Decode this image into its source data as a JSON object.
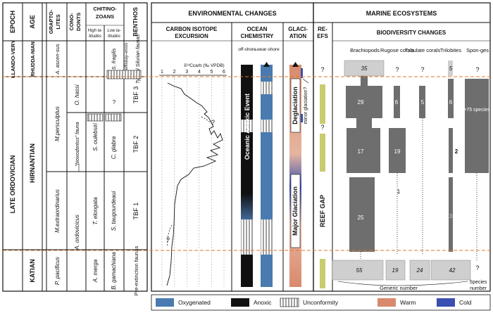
{
  "header": {
    "epoch": "EPOCH",
    "age": "AGE",
    "graptolites": [
      "GRAPTO-",
      "LITES"
    ],
    "conodonts": [
      "CONO-",
      "DONTS"
    ],
    "chitinozoans": [
      "CHITINO-",
      "ZOANS"
    ],
    "high_latitudes": [
      "High la-",
      "titudes"
    ],
    "low_latitudes": [
      "Low la-",
      "titudes"
    ],
    "benthos": "BENTHOS",
    "environmental_changes": "ENVIRONMENTAL CHANGES",
    "marine_ecosystems": "MARINE ECOSYSTEMS",
    "carbon_isotope": [
      "CARBON ISOTOPE",
      "EXCURSION"
    ],
    "ocean_chemistry": [
      "OCEAN",
      "CHEMISTRY"
    ],
    "glaciation": [
      "GLACI-",
      "ATION"
    ],
    "reefs": [
      "RE-",
      "EFS"
    ],
    "biodiversity_changes": "BIODIVERSITY CHANGES"
  },
  "chronostrat": {
    "llandovery": "LLANDO-VERY",
    "late_ordovician": "LATE ORDOVICIAN",
    "rhuddanian": "RHUDDA-NIAN",
    "hirnantian": "HIRNANTIAN",
    "katian": "KATIAN"
  },
  "graptolites": {
    "ascensus": "A. ascen-sus",
    "persculptus": "M.persculptus",
    "extraordinarius": "M.extraordinarius",
    "pacificus": "P. pacificus"
  },
  "conodonts": {
    "hassi": "O. hassi",
    "normalodontus": "\"Noixodontus\" fauna",
    "ordovicicus": "A. ordovicicus"
  },
  "chitino_high": {
    "oulebsiri": "S. oulebsiri",
    "elongata": "T. elongata",
    "merga": "A. merga"
  },
  "chitino_low": {
    "fragilis": "S. fragilis",
    "ellisbay": "A. ellisbay-ensis",
    "q": "?",
    "glabra": "C. glabra",
    "taugourdeaui": "S. taugourdeaui",
    "gamachiana": "B. gamachiana"
  },
  "benthos": {
    "silurian": "Typical Silurian faunas",
    "tbf3": "TBF 3",
    "tbf2": "TBF 2",
    "tbf1": "TBF 1",
    "preext": "Pre-extinction faunas"
  },
  "carbon": {
    "axis_label": "δ¹³Ccarb (‰ VPDB)",
    "ticks": [
      "1",
      "2",
      "3",
      "4",
      "5",
      "6"
    ]
  },
  "ocean": {
    "offshore": "off-shore",
    "nearshore": "near-shore",
    "event": "Oceanic Anoxic Event"
  },
  "glaciation": {
    "deglaciation": "Deglaciation",
    "minor": "minor glaciation?",
    "major": "Major Glaciation"
  },
  "reefs": {
    "gap": "REEF GAP"
  },
  "biodiversity": {
    "groups": [
      "Brachiopods",
      "Rugose corals",
      "Tabulate corals",
      "Trilobites",
      "Spon-ges"
    ],
    "brachiopods": [
      "35",
      "29",
      "17",
      "25",
      "55"
    ],
    "rugose": [
      "6",
      "19",
      "1",
      "19"
    ],
    "tabulate": [
      "5",
      "24"
    ],
    "trilobites": [
      "5",
      "6",
      "2",
      "3",
      "42"
    ],
    "sponges": [
      "?",
      ">75 species"
    ],
    "generic_number": "Generic number",
    "species_number": "Species number"
  },
  "legend": {
    "oxygenated": "Oxygenated",
    "anoxic": "Anoxic",
    "unconformity": "Unconformity",
    "warm": "Warm",
    "cold": "Cold"
  },
  "colors": {
    "oxygenated": "#4a7bb0",
    "anoxic": "#111111",
    "warm": "#d98a6c",
    "cold": "#3a4fb0",
    "reef": "#c8cc6e",
    "bar": "#6e6e6e",
    "light_box": "#cfcfcf",
    "dashed": "#e07a2a"
  }
}
